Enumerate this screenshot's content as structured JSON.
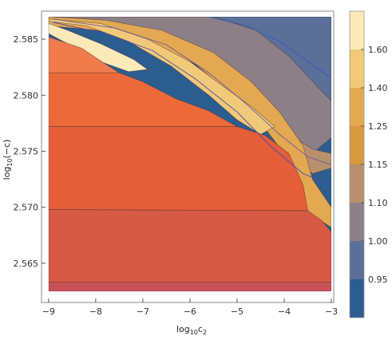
{
  "chart_data": {
    "type": "heatmap",
    "subtype": "filled-contour",
    "title": "",
    "xlabel": {
      "prefix": "log",
      "sub": "10",
      "suffix": "c",
      "sub2": "2"
    },
    "ylabel": {
      "prefix": "log",
      "sub": "10",
      "suffix": "(−c)"
    },
    "xlim": [
      -9.15,
      -2.95
    ],
    "ylim": [
      2.5615,
      2.5875
    ],
    "x_ticks": [
      -9,
      -8,
      -7,
      -6,
      -5,
      -4,
      -3
    ],
    "x_tick_labels": [
      "−9",
      "−8",
      "−7",
      "−6",
      "−5",
      "−4",
      "−3"
    ],
    "y_ticks": [
      2.565,
      2.57,
      2.575,
      2.58,
      2.585
    ],
    "y_tick_labels": [
      "2.565",
      "2.570",
      "2.575",
      "2.580",
      "2.585"
    ],
    "plot_region": {
      "x": [
        -9,
        -3
      ],
      "y": [
        2.5625,
        2.587
      ]
    },
    "colorbar": {
      "levels": [
        "0.95",
        "1.00",
        "1.10",
        "1.15",
        "1.25",
        "1.40",
        "1.60"
      ],
      "colors": [
        "#2c5d8f",
        "#5b6f99",
        "#8c7f86",
        "#b8906e",
        "#d9973f",
        "#e3a852",
        "#f2c978",
        "#fbeab8"
      ]
    },
    "regions": [
      {
        "name": "bottom-band",
        "color": "#c8525a",
        "boundary": [
          [
            -9,
            2.5625
          ],
          [
            -3,
            2.5625
          ],
          [
            -3,
            2.5633
          ],
          [
            -9,
            2.5633
          ]
        ]
      },
      {
        "name": "lower-red",
        "color": "#d65a44",
        "boundary": [
          [
            -9,
            2.5633
          ],
          [
            -3,
            2.5633
          ],
          [
            -3,
            2.5678
          ],
          [
            -3.2,
            2.5688
          ],
          [
            -3.5,
            2.5697
          ],
          [
            -9,
            2.5698
          ]
        ]
      },
      {
        "name": "mid-red",
        "color": "#e55e3a",
        "boundary": [
          [
            -9,
            2.5698
          ],
          [
            -3.5,
            2.5697
          ],
          [
            -3.6,
            2.572
          ],
          [
            -3.9,
            2.5748
          ],
          [
            -4.4,
            2.5764
          ],
          [
            -5.0,
            2.5772
          ],
          [
            -9,
            2.5772
          ]
        ]
      },
      {
        "name": "upper-red",
        "color": "#ec6a3a",
        "boundary": [
          [
            -9,
            2.5772
          ],
          [
            -5.0,
            2.5772
          ],
          [
            -5.6,
            2.5786
          ],
          [
            -6.3,
            2.5797
          ],
          [
            -7,
            2.5812
          ],
          [
            -7.5,
            2.582
          ],
          [
            -9,
            2.582
          ]
        ]
      },
      {
        "name": "top-red",
        "color": "#f07c4e",
        "boundary": [
          [
            -9,
            2.582
          ],
          [
            -7.5,
            2.582
          ],
          [
            -7.8,
            2.5828
          ],
          [
            -8.3,
            2.5842
          ],
          [
            -9,
            2.5852
          ]
        ]
      }
    ],
    "contour_lines": [
      {
        "name": "contour-1.60",
        "color": "#4b4ba8",
        "points": [
          [
            -8.9,
            2.5865
          ],
          [
            -7.8,
            2.5855
          ],
          [
            -6.8,
            2.584
          ],
          [
            -5.9,
            2.5815
          ],
          [
            -5.0,
            2.5785
          ],
          [
            -4.3,
            2.5755
          ],
          [
            -3.6,
            2.573
          ],
          [
            -3.0,
            2.572
          ]
        ]
      },
      {
        "name": "contour-1.40",
        "color": "#6a5aa0",
        "points": [
          [
            -8.9,
            2.5868
          ],
          [
            -7.6,
            2.586
          ],
          [
            -6.5,
            2.5845
          ],
          [
            -5.6,
            2.582
          ],
          [
            -4.8,
            2.5792
          ],
          [
            -4.1,
            2.5765
          ],
          [
            -3.5,
            2.5745
          ],
          [
            -3.0,
            2.5738
          ]
        ]
      },
      {
        "name": "contour-0.95",
        "color": "#3a5ab8",
        "points": [
          [
            -5.6,
            2.587
          ],
          [
            -4.8,
            2.5862
          ],
          [
            -4.1,
            2.5848
          ],
          [
            -3.5,
            2.583
          ],
          [
            -3.0,
            2.5815
          ]
        ]
      }
    ]
  }
}
